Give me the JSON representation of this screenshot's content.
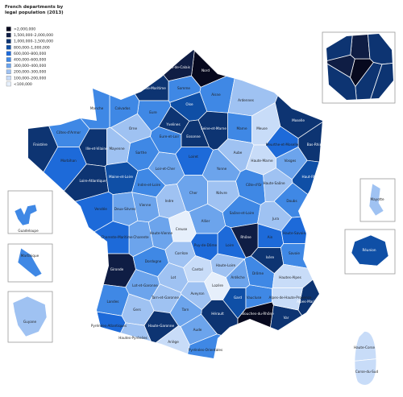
{
  "header": {
    "title": "French departments by legal population (2013)"
  },
  "legend": [
    {
      "label": ">2,000,000",
      "color": "#07091e"
    },
    {
      "label": "1,500,000–2,000,000",
      "color": "#0f1d44"
    },
    {
      "label": "1,000,000–1,500,000",
      "color": "#0d3472"
    },
    {
      "label": "800,000–1,000,000",
      "color": "#0f4fa6"
    },
    {
      "label": "600,000–800,000",
      "color": "#1d6ad9"
    },
    {
      "label": "400,000–600,000",
      "color": "#3f88e5"
    },
    {
      "label": "300,000–400,000",
      "color": "#6ca4ec"
    },
    {
      "label": "200,000–300,000",
      "color": "#9fc2f2"
    },
    {
      "label": "100,000–200,000",
      "color": "#c8dcf8"
    },
    {
      "label": "<100,000",
      "color": "#e6effb"
    }
  ],
  "departments": [
    {
      "name": "Nord",
      "color": "#07091e"
    },
    {
      "name": "Pas-de-Calais",
      "color": "#0f1d44"
    },
    {
      "name": "Somme",
      "color": "#3f88e5"
    },
    {
      "name": "Aisne",
      "color": "#3f88e5"
    },
    {
      "name": "Oise",
      "color": "#0f4fa6"
    },
    {
      "name": "Seine-Maritime",
      "color": "#0d3472"
    },
    {
      "name": "Eure",
      "color": "#3f88e5"
    },
    {
      "name": "Calvados",
      "color": "#3f88e5"
    },
    {
      "name": "Manche",
      "color": "#3f88e5"
    },
    {
      "name": "Orne",
      "color": "#9fc2f2"
    },
    {
      "name": "Finistère",
      "color": "#0d3472"
    },
    {
      "name": "Côtes-d'Armor",
      "color": "#3f88e5"
    },
    {
      "name": "Morbihan",
      "color": "#1d6ad9"
    },
    {
      "name": "Ille-et-Vilaine",
      "color": "#0d3472"
    },
    {
      "name": "Loire-Atlantique",
      "color": "#0d3472"
    },
    {
      "name": "Mayenne",
      "color": "#9fc2f2"
    },
    {
      "name": "Sarthe",
      "color": "#3f88e5"
    },
    {
      "name": "Maine-et-Loire",
      "color": "#0f4fa6"
    },
    {
      "name": "Vendée",
      "color": "#1d6ad9"
    },
    {
      "name": "Ardennes",
      "color": "#9fc2f2"
    },
    {
      "name": "Marne",
      "color": "#3f88e5"
    },
    {
      "name": "Meuse",
      "color": "#c8dcf8"
    },
    {
      "name": "Moselle",
      "color": "#0d3472"
    },
    {
      "name": "Bas-Rhin",
      "color": "#0d3472"
    },
    {
      "name": "Haut-Rhin",
      "color": "#0f4fa6"
    },
    {
      "name": "Aube",
      "color": "#9fc2f2"
    },
    {
      "name": "Haute-Marne",
      "color": "#c8dcf8"
    },
    {
      "name": "Vosges",
      "color": "#6ca4ec"
    },
    {
      "name": "Meurthe-et-Moselle",
      "color": "#1d6ad9"
    },
    {
      "name": "Loiret",
      "color": "#1d6ad9"
    },
    {
      "name": "Loir-et-Cher",
      "color": "#6ca4ec"
    },
    {
      "name": "Eure-et-Loir",
      "color": "#3f88e5"
    },
    {
      "name": "Yonne",
      "color": "#6ca4ec"
    },
    {
      "name": "Côte-d'Or",
      "color": "#3f88e5"
    },
    {
      "name": "Cher",
      "color": "#6ca4ec"
    },
    {
      "name": "Nièvre",
      "color": "#9fc2f2"
    },
    {
      "name": "Indre",
      "color": "#9fc2f2"
    },
    {
      "name": "Allier",
      "color": "#6ca4ec"
    },
    {
      "name": "Saône-et-Loire",
      "color": "#3f88e5"
    },
    {
      "name": "Doubs",
      "color": "#3f88e5"
    },
    {
      "name": "Jura",
      "color": "#9fc2f2"
    },
    {
      "name": "Ain",
      "color": "#1d6ad9"
    },
    {
      "name": "Rhône",
      "color": "#0f1d44"
    },
    {
      "name": "Loire",
      "color": "#1d6ad9"
    },
    {
      "name": "Puy-de-Dôme",
      "color": "#1d6ad9"
    },
    {
      "name": "Haute-Loire",
      "color": "#9fc2f2"
    },
    {
      "name": "Cantal",
      "color": "#c8dcf8"
    },
    {
      "name": "Creuse",
      "color": "#e6effb"
    },
    {
      "name": "Corrèze",
      "color": "#9fc2f2"
    },
    {
      "name": "Haute-Vienne",
      "color": "#6ca4ec"
    },
    {
      "name": "Vienne",
      "color": "#6ca4ec"
    },
    {
      "name": "Deux-Sèvres",
      "color": "#6ca4ec"
    },
    {
      "name": "Charente",
      "color": "#6ca4ec"
    },
    {
      "name": "Charente-Maritime",
      "color": "#1d6ad9"
    },
    {
      "name": "Gironde",
      "color": "#0f1d44"
    },
    {
      "name": "Dordogne",
      "color": "#3f88e5"
    },
    {
      "name": "Landes",
      "color": "#3f88e5"
    },
    {
      "name": "Lot-et-Garonne",
      "color": "#6ca4ec"
    },
    {
      "name": "Lot",
      "color": "#9fc2f2"
    },
    {
      "name": "Aveyron",
      "color": "#9fc2f2"
    },
    {
      "name": "Lozère",
      "color": "#e6effb"
    },
    {
      "name": "Gard",
      "color": "#0f4fa6"
    },
    {
      "name": "Hérault",
      "color": "#0d3472"
    },
    {
      "name": "Tarn",
      "color": "#6ca4ec"
    },
    {
      "name": "Tarn-et-Garonne",
      "color": "#9fc2f2"
    },
    {
      "name": "Haute-Garonne",
      "color": "#0d3472"
    },
    {
      "name": "Gers",
      "color": "#9fc2f2"
    },
    {
      "name": "Pyrénées-Atlantiques",
      "color": "#1d6ad9"
    },
    {
      "name": "Hautes-Pyrénées",
      "color": "#9fc2f2"
    },
    {
      "name": "Ariège",
      "color": "#c8dcf8"
    },
    {
      "name": "Aude",
      "color": "#6ca4ec"
    },
    {
      "name": "Pyrénées-Orientales",
      "color": "#3f88e5"
    },
    {
      "name": "Bouches-du-Rhône",
      "color": "#07091e"
    },
    {
      "name": "Var",
      "color": "#0d3472"
    },
    {
      "name": "Alpes-Maritimes",
      "color": "#0d3472"
    },
    {
      "name": "Vaucluse",
      "color": "#3f88e5"
    },
    {
      "name": "Drôme",
      "color": "#3f88e5"
    },
    {
      "name": "Ardèche",
      "color": "#6ca4ec"
    },
    {
      "name": "Isère",
      "color": "#0d3472"
    },
    {
      "name": "Savoie",
      "color": "#3f88e5"
    },
    {
      "name": "Haute-Savoie",
      "color": "#1d6ad9"
    },
    {
      "name": "Hautes-Alpes",
      "color": "#c8dcf8"
    },
    {
      "name": "Alpes-de-Haute-Provence",
      "color": "#c8dcf8"
    },
    {
      "name": "Seine-et-Marne",
      "color": "#0d3472"
    },
    {
      "name": "Yvelines",
      "color": "#0d3472"
    },
    {
      "name": "Essonne",
      "color": "#0d3472"
    },
    {
      "name": "Indre-et-Loire",
      "color": "#3f88e5"
    },
    {
      "name": "Haute-Saône",
      "color": "#9fc2f2"
    },
    {
      "name": "Haute-Corse",
      "color": "#c8dcf8"
    },
    {
      "name": "Corse-du-Sud",
      "color": "#c8dcf8"
    }
  ],
  "paris_inset": [
    {
      "color": "#07091e"
    },
    {
      "color": "#0f1d44"
    },
    {
      "color": "#0f1d44"
    },
    {
      "color": "#0d3472"
    },
    {
      "color": "#0d3472"
    },
    {
      "color": "#0d3472"
    },
    {
      "color": "#0d3472"
    },
    {
      "color": "#0d3472"
    }
  ],
  "overseas": [
    {
      "name": "Guadeloupe",
      "color": "#3f88e5"
    },
    {
      "name": "Martinique",
      "color": "#3f88e5"
    },
    {
      "name": "Guyane",
      "color": "#9fc2f2"
    },
    {
      "name": "Mayotte",
      "color": "#9fc2f2"
    },
    {
      "name": "Réunion",
      "color": "#0f4fa6"
    }
  ]
}
